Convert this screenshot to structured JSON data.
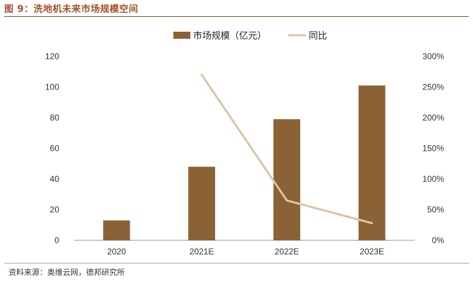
{
  "figure": {
    "title": "图 9：洗地机未来市场规模空间",
    "source": "资料来源：奥维云网，德邦研究所"
  },
  "chart_data": {
    "type": "bar",
    "categories": [
      "2020",
      "2021E",
      "2022E",
      "2023E"
    ],
    "series": [
      {
        "name": "市场规模（亿元）",
        "type": "bar",
        "axis": "left",
        "color": "#8b6136",
        "values": [
          13,
          48,
          79,
          101
        ]
      },
      {
        "name": "同比",
        "type": "line",
        "axis": "right",
        "color": "#d9c6a5",
        "values": [
          null,
          2.7,
          0.65,
          0.28
        ]
      }
    ],
    "y_left": {
      "ticks": [
        "0",
        "20",
        "40",
        "60",
        "80",
        "100",
        "120"
      ],
      "min": 0,
      "max": 120
    },
    "y_right": {
      "ticks": [
        "0%",
        "50%",
        "100%",
        "150%",
        "200%",
        "250%",
        "300%"
      ],
      "min": 0,
      "max": 3
    },
    "grid": false,
    "legend_position": "top-center"
  }
}
